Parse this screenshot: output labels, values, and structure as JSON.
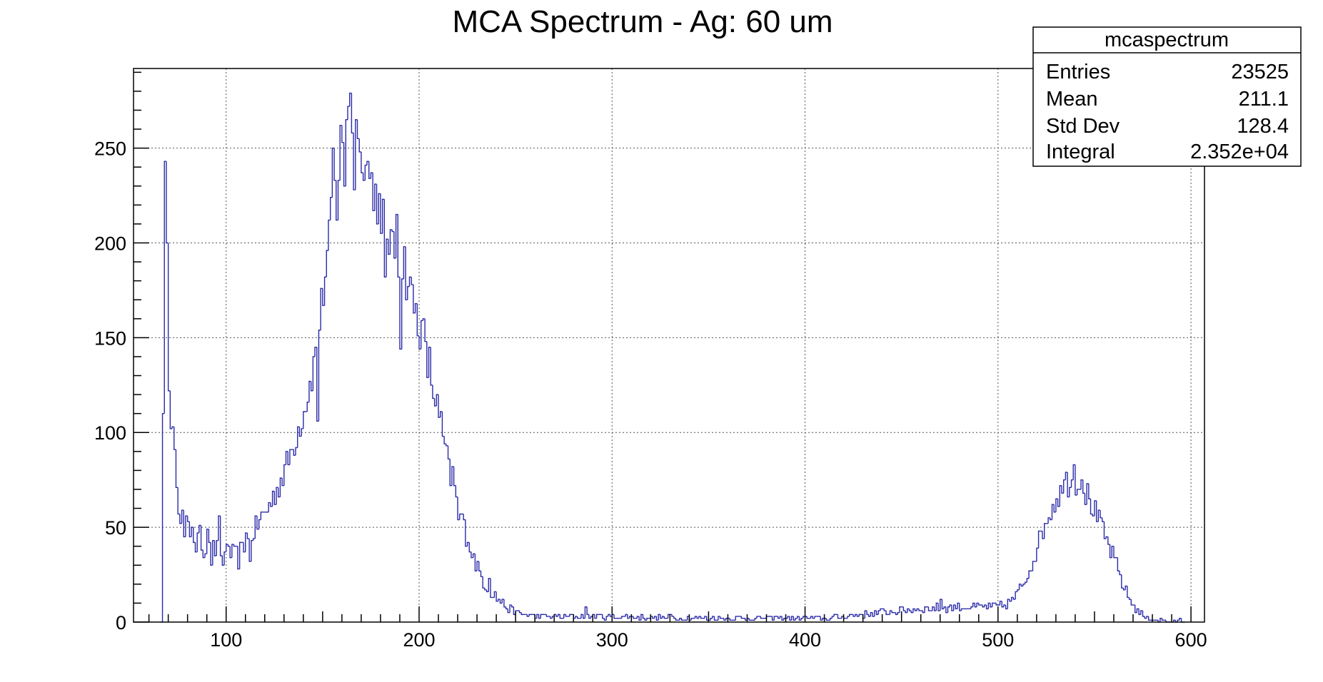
{
  "chart_data": {
    "type": "histogram",
    "title": "MCA Spectrum - Ag: 60 um",
    "xlabel": "",
    "ylabel": "",
    "xlim": [
      52,
      607
    ],
    "ylim": [
      0,
      292
    ],
    "bin_width": 1,
    "grid": true,
    "x_ticks": [
      100,
      200,
      300,
      400,
      500,
      600
    ],
    "y_ticks": [
      0,
      50,
      100,
      150,
      200,
      250
    ],
    "line_color": "#2a2aa8",
    "stats_box": {
      "title": "mcaspectrum",
      "placement": "top-right",
      "rows": [
        {
          "label": "Entries",
          "value": "23525"
        },
        {
          "label": "Mean",
          "value": "211.1"
        },
        {
          "label": "Std Dev",
          "value": "128.4"
        },
        {
          "label": "Integral",
          "value": "2.352e+04"
        }
      ]
    },
    "anchors": [
      [
        66,
        0
      ],
      [
        67,
        110
      ],
      [
        68,
        243
      ],
      [
        69,
        200
      ],
      [
        70,
        122
      ],
      [
        72,
        97
      ],
      [
        74,
        70
      ],
      [
        76,
        58
      ],
      [
        78,
        52
      ],
      [
        82,
        46
      ],
      [
        86,
        40
      ],
      [
        90,
        38
      ],
      [
        95,
        38
      ],
      [
        100,
        36
      ],
      [
        105,
        35
      ],
      [
        110,
        40
      ],
      [
        115,
        50
      ],
      [
        120,
        58
      ],
      [
        125,
        68
      ],
      [
        130,
        80
      ],
      [
        135,
        95
      ],
      [
        140,
        112
      ],
      [
        145,
        135
      ],
      [
        150,
        175
      ],
      [
        155,
        220
      ],
      [
        160,
        255
      ],
      [
        163,
        268
      ],
      [
        166,
        262
      ],
      [
        170,
        250
      ],
      [
        175,
        232
      ],
      [
        180,
        215
      ],
      [
        185,
        200
      ],
      [
        190,
        190
      ],
      [
        195,
        175
      ],
      [
        200,
        155
      ],
      [
        205,
        130
      ],
      [
        210,
        110
      ],
      [
        215,
        80
      ],
      [
        220,
        62
      ],
      [
        225,
        42
      ],
      [
        230,
        28
      ],
      [
        235,
        18
      ],
      [
        240,
        13
      ],
      [
        245,
        8
      ],
      [
        250,
        5
      ],
      [
        260,
        3
      ],
      [
        280,
        3
      ],
      [
        300,
        3
      ],
      [
        340,
        2
      ],
      [
        380,
        2
      ],
      [
        410,
        2
      ],
      [
        420,
        3
      ],
      [
        440,
        5
      ],
      [
        460,
        7
      ],
      [
        480,
        8
      ],
      [
        500,
        8
      ],
      [
        505,
        10
      ],
      [
        510,
        15
      ],
      [
        515,
        25
      ],
      [
        520,
        40
      ],
      [
        525,
        55
      ],
      [
        530,
        66
      ],
      [
        535,
        71
      ],
      [
        540,
        74
      ],
      [
        545,
        68
      ],
      [
        550,
        58
      ],
      [
        555,
        45
      ],
      [
        560,
        32
      ],
      [
        565,
        18
      ],
      [
        570,
        8
      ],
      [
        575,
        3
      ],
      [
        580,
        1
      ],
      [
        585,
        1
      ],
      [
        590,
        0
      ],
      [
        594,
        1
      ],
      [
        596,
        0
      ]
    ],
    "spikes": [
      [
        74,
        71
      ],
      [
        78,
        45
      ],
      [
        82,
        50
      ],
      [
        84,
        37
      ],
      [
        86,
        51
      ],
      [
        90,
        49
      ],
      [
        92,
        30
      ],
      [
        96,
        56
      ],
      [
        98,
        30
      ],
      [
        100,
        41
      ],
      [
        106,
        28
      ],
      [
        110,
        47
      ],
      [
        112,
        32
      ],
      [
        147,
        106
      ],
      [
        155,
        250
      ],
      [
        157,
        212
      ],
      [
        159,
        262
      ],
      [
        161,
        230
      ],
      [
        163,
        272
      ],
      [
        164,
        279
      ],
      [
        166,
        228
      ],
      [
        167,
        265
      ],
      [
        169,
        248
      ],
      [
        180,
        205
      ],
      [
        182,
        182
      ],
      [
        186,
        206
      ],
      [
        188,
        215
      ],
      [
        190,
        144
      ],
      [
        192,
        198
      ],
      [
        196,
        178
      ],
      [
        202,
        160
      ],
      [
        205,
        145
      ],
      [
        210,
        108
      ],
      [
        217,
        82
      ],
      [
        220,
        54
      ],
      [
        225,
        42
      ],
      [
        236,
        23
      ],
      [
        240,
        11
      ],
      [
        286,
        8
      ],
      [
        330,
        4
      ],
      [
        470,
        12
      ],
      [
        535,
        79
      ],
      [
        539,
        83
      ],
      [
        543,
        75
      ],
      [
        546,
        73
      ]
    ]
  }
}
